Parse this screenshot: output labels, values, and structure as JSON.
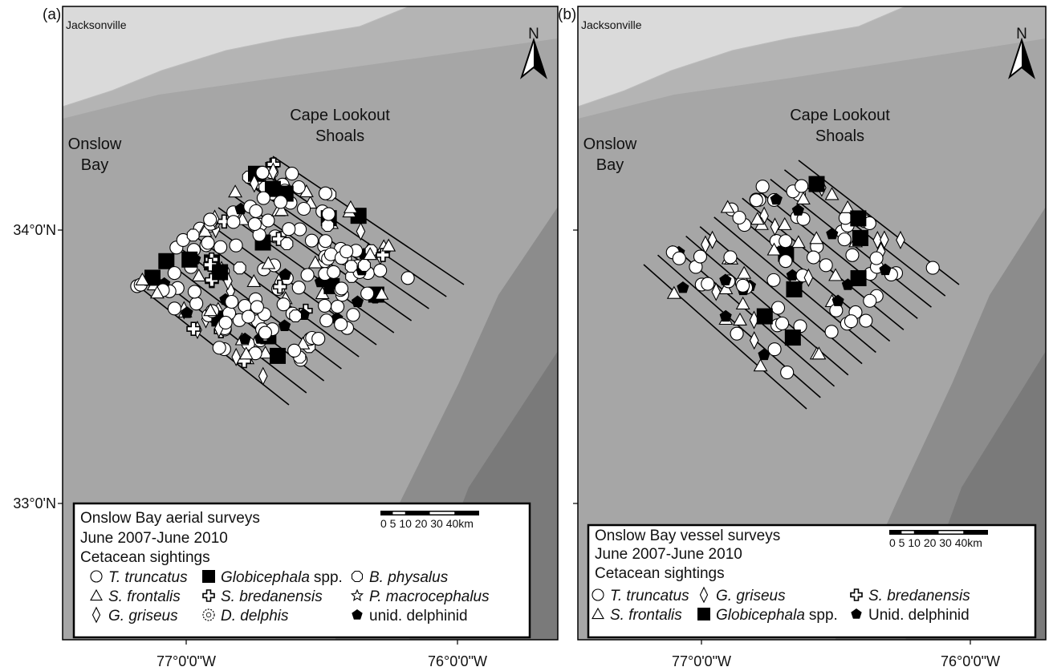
{
  "panels": [
    {
      "label": "(a)",
      "city": "Jacksonville",
      "north": "N",
      "shoals": [
        "Cape Lookout",
        "Shoals"
      ],
      "bay": [
        "Onslow",
        "Bay"
      ],
      "lat_labels": [
        "34°0'N",
        "33°0'N"
      ],
      "lon_labels": [
        "77°0'0\"W",
        "76°0'0\"W"
      ],
      "legend": {
        "lines": [
          "Onslow Bay aerial surveys",
          "June 2007-June 2010",
          "Cetacean sightings"
        ],
        "scale": "0 5 10 20 30 40km",
        "items": [
          {
            "name": "T. truncatus",
            "italic": true
          },
          {
            "name": "Globicephala",
            "italic": true,
            "suffix": "spp."
          },
          {
            "name": "B. physalus",
            "italic": true
          },
          {
            "name": "S. frontalis",
            "italic": true
          },
          {
            "name": "S. bredanensis",
            "italic": true
          },
          {
            "name": "P. macrocephalus",
            "italic": true
          },
          {
            "name": "G. griseus",
            "italic": true
          },
          {
            "name": "D. delphis",
            "italic": true
          },
          {
            "name": "unid. delphinid",
            "italic": false
          }
        ]
      }
    },
    {
      "label": "(b)",
      "city": "Jacksonville",
      "north": "N",
      "shoals": [
        "Cape Lookout",
        "Shoals"
      ],
      "bay": [
        "Onslow",
        "Bay"
      ],
      "lon_labels": [
        "77°0'0\"W",
        "76°0'0\"W"
      ],
      "legend": {
        "lines": [
          "Onslow Bay vessel surveys",
          "June 2007-June 2010",
          "Cetacean sightings"
        ],
        "scale": "0 5 10 20 30 40km",
        "items": [
          {
            "name": "T. truncatus",
            "italic": true
          },
          {
            "name": "G. griseus",
            "italic": true
          },
          {
            "name": "S. bredanensis",
            "italic": true
          },
          {
            "name": "S. frontalis",
            "italic": true
          },
          {
            "name": "Globicephala",
            "italic": true,
            "suffix": "spp."
          },
          {
            "name": "Unid. delphinid",
            "italic": false
          }
        ]
      }
    }
  ]
}
